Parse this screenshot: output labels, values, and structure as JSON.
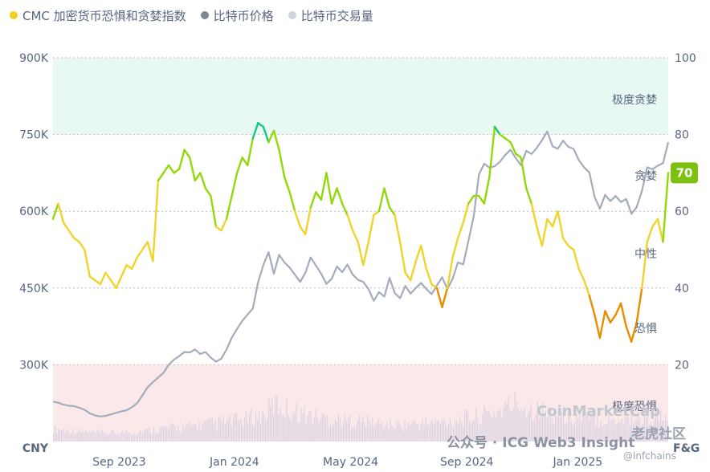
{
  "legend": [
    {
      "label": "CMC 加密货币恐惧和贪婪指数",
      "color": "#f2cf1b"
    },
    {
      "label": "比特币价格",
      "color": "#7d8595"
    },
    {
      "label": "比特币交易量",
      "color": "#cfd3dc"
    }
  ],
  "chart_data": {
    "type": "line",
    "title": "",
    "left_axis": {
      "label": "CNY",
      "ticks": [
        "900K",
        "750K",
        "600K",
        "450K",
        "300K"
      ],
      "range": [
        150000,
        900000
      ]
    },
    "right_axis": {
      "label": "F&G",
      "ticks": [
        "100",
        "80",
        "60",
        "40",
        "20"
      ],
      "range": [
        0,
        100
      ]
    },
    "x_ticks": [
      "Sep 2023",
      "Jan 2024",
      "May 2024",
      "Sep 2024",
      "Jan 2025"
    ],
    "zones": [
      {
        "label": "极度贪婪",
        "from": 80,
        "to": 100,
        "color": "#e8f8f3"
      },
      {
        "label": "贪婪",
        "from": 60,
        "to": 80
      },
      {
        "label": "中性",
        "from": 40,
        "to": 60
      },
      {
        "label": "恐惧",
        "from": 20,
        "to": 40
      },
      {
        "label": "极度恐惧",
        "from": 0,
        "to": 20,
        "color": "#fbe9ea"
      }
    ],
    "current_index": {
      "value": "70",
      "color": "#7cc10f"
    },
    "grid": true,
    "series": [
      {
        "name": "CMC 加密货币恐惧和贪婪指数",
        "axis": "right",
        "colors": {
          "extreme_greed": "#16c784",
          "greed": "#93d90a",
          "neutral": "#f0d42b",
          "fear": "#ea8c00",
          "extreme_fear": "#ea3943"
        },
        "points": [
          [
            0,
            58
          ],
          [
            1,
            62
          ],
          [
            2,
            57
          ],
          [
            3,
            55
          ],
          [
            4,
            53
          ],
          [
            5,
            52
          ],
          [
            6,
            50
          ],
          [
            7,
            43
          ],
          [
            8,
            42
          ],
          [
            9,
            41
          ],
          [
            10,
            44
          ],
          [
            11,
            42
          ],
          [
            12,
            40
          ],
          [
            13,
            43
          ],
          [
            14,
            46
          ],
          [
            15,
            45
          ],
          [
            16,
            48
          ],
          [
            17,
            50
          ],
          [
            18,
            52
          ],
          [
            19,
            47
          ],
          [
            20,
            68
          ],
          [
            21,
            70
          ],
          [
            22,
            72
          ],
          [
            23,
            70
          ],
          [
            24,
            71
          ],
          [
            25,
            76
          ],
          [
            26,
            74
          ],
          [
            27,
            68
          ],
          [
            28,
            70
          ],
          [
            29,
            66
          ],
          [
            30,
            64
          ],
          [
            31,
            56
          ],
          [
            32,
            55
          ],
          [
            33,
            58
          ],
          [
            34,
            64
          ],
          [
            35,
            70
          ],
          [
            36,
            74
          ],
          [
            37,
            72
          ],
          [
            38,
            79
          ],
          [
            39,
            83
          ],
          [
            40,
            82
          ],
          [
            41,
            78
          ],
          [
            42,
            81
          ],
          [
            43,
            76
          ],
          [
            44,
            69
          ],
          [
            45,
            65
          ],
          [
            46,
            60
          ],
          [
            47,
            56
          ],
          [
            48,
            54
          ],
          [
            49,
            61
          ],
          [
            50,
            65
          ],
          [
            51,
            63
          ],
          [
            52,
            70
          ],
          [
            53,
            62
          ],
          [
            54,
            66
          ],
          [
            55,
            62
          ],
          [
            56,
            59
          ],
          [
            57,
            55
          ],
          [
            58,
            52
          ],
          [
            59,
            46
          ],
          [
            60,
            52
          ],
          [
            61,
            59
          ],
          [
            62,
            60
          ],
          [
            63,
            66
          ],
          [
            64,
            61
          ],
          [
            65,
            59
          ],
          [
            66,
            52
          ],
          [
            67,
            44
          ],
          [
            68,
            42
          ],
          [
            69,
            47
          ],
          [
            70,
            51
          ],
          [
            71,
            45
          ],
          [
            72,
            41
          ],
          [
            73,
            40
          ],
          [
            74,
            35
          ],
          [
            75,
            40
          ],
          [
            76,
            48
          ],
          [
            77,
            53
          ],
          [
            78,
            57
          ],
          [
            79,
            62
          ],
          [
            80,
            64
          ],
          [
            81,
            64
          ],
          [
            82,
            62
          ],
          [
            83,
            69
          ],
          [
            84,
            82
          ],
          [
            85,
            80
          ],
          [
            86,
            79
          ],
          [
            87,
            78
          ],
          [
            88,
            75
          ],
          [
            89,
            74
          ],
          [
            90,
            66
          ],
          [
            91,
            62
          ],
          [
            92,
            56
          ],
          [
            93,
            51
          ],
          [
            94,
            58
          ],
          [
            95,
            56
          ],
          [
            96,
            60
          ],
          [
            97,
            53
          ],
          [
            98,
            51
          ],
          [
            99,
            50
          ],
          [
            100,
            45
          ],
          [
            101,
            42
          ],
          [
            102,
            38
          ],
          [
            103,
            33
          ],
          [
            104,
            27
          ],
          [
            105,
            34
          ],
          [
            106,
            31
          ],
          [
            107,
            33
          ],
          [
            108,
            36
          ],
          [
            109,
            30
          ],
          [
            110,
            26
          ],
          [
            111,
            31
          ],
          [
            112,
            40
          ],
          [
            113,
            52
          ],
          [
            114,
            56
          ],
          [
            115,
            58
          ],
          [
            116,
            52
          ],
          [
            117,
            70
          ]
        ]
      },
      {
        "name": "比特币价格",
        "axis": "left",
        "points": [
          [
            0,
            228000
          ],
          [
            1,
            226000
          ],
          [
            2,
            222000
          ],
          [
            3,
            220000
          ],
          [
            4,
            219000
          ],
          [
            5,
            216000
          ],
          [
            6,
            212000
          ],
          [
            7,
            205000
          ],
          [
            8,
            201000
          ],
          [
            9,
            199000
          ],
          [
            10,
            200000
          ],
          [
            11,
            203000
          ],
          [
            12,
            206000
          ],
          [
            13,
            209000
          ],
          [
            14,
            211000
          ],
          [
            15,
            217000
          ],
          [
            16,
            225000
          ],
          [
            17,
            240000
          ],
          [
            18,
            256000
          ],
          [
            19,
            266000
          ],
          [
            20,
            275000
          ],
          [
            21,
            284000
          ],
          [
            22,
            300000
          ],
          [
            23,
            310000
          ],
          [
            24,
            317000
          ],
          [
            25,
            325000
          ],
          [
            26,
            324000
          ],
          [
            27,
            330000
          ],
          [
            28,
            321000
          ],
          [
            29,
            325000
          ],
          [
            30,
            314000
          ],
          [
            31,
            306000
          ],
          [
            32,
            312000
          ],
          [
            33,
            330000
          ],
          [
            34,
            353000
          ],
          [
            35,
            370000
          ],
          [
            36,
            386000
          ],
          [
            37,
            398000
          ],
          [
            38,
            410000
          ],
          [
            39,
            461000
          ],
          [
            40,
            495000
          ],
          [
            41,
            520000
          ],
          [
            42,
            478000
          ],
          [
            43,
            515000
          ],
          [
            44,
            500000
          ],
          [
            45,
            490000
          ],
          [
            46,
            476000
          ],
          [
            47,
            462000
          ],
          [
            48,
            480000
          ],
          [
            49,
            510000
          ],
          [
            50,
            494000
          ],
          [
            51,
            478000
          ],
          [
            52,
            458000
          ],
          [
            53,
            468000
          ],
          [
            54,
            492000
          ],
          [
            55,
            481000
          ],
          [
            56,
            496000
          ],
          [
            57,
            476000
          ],
          [
            58,
            466000
          ],
          [
            59,
            462000
          ],
          [
            60,
            448000
          ],
          [
            61,
            425000
          ],
          [
            62,
            442000
          ],
          [
            63,
            433000
          ],
          [
            64,
            470000
          ],
          [
            65,
            440000
          ],
          [
            66,
            430000
          ],
          [
            67,
            454000
          ],
          [
            68,
            439000
          ],
          [
            69,
            450000
          ],
          [
            70,
            460000
          ],
          [
            71,
            448000
          ],
          [
            72,
            438000
          ],
          [
            73,
            455000
          ],
          [
            74,
            471000
          ],
          [
            75,
            448000
          ],
          [
            76,
            468000
          ],
          [
            77,
            500000
          ],
          [
            78,
            496000
          ],
          [
            79,
            542000
          ],
          [
            80,
            590000
          ],
          [
            81,
            672000
          ],
          [
            82,
            693000
          ],
          [
            83,
            685000
          ],
          [
            84,
            688000
          ],
          [
            85,
            697000
          ],
          [
            86,
            710000
          ],
          [
            87,
            720000
          ],
          [
            88,
            704000
          ],
          [
            89,
            690000
          ],
          [
            90,
            718000
          ],
          [
            91,
            712000
          ],
          [
            92,
            724000
          ],
          [
            93,
            739000
          ],
          [
            94,
            756000
          ],
          [
            95,
            727000
          ],
          [
            96,
            722000
          ],
          [
            97,
            738000
          ],
          [
            98,
            726000
          ],
          [
            99,
            722000
          ],
          [
            100,
            700000
          ],
          [
            101,
            686000
          ],
          [
            102,
            676000
          ],
          [
            103,
            628000
          ],
          [
            104,
            605000
          ],
          [
            105,
            632000
          ],
          [
            106,
            620000
          ],
          [
            107,
            630000
          ],
          [
            108,
            618000
          ],
          [
            109,
            624000
          ],
          [
            110,
            595000
          ],
          [
            111,
            608000
          ],
          [
            112,
            640000
          ],
          [
            113,
            686000
          ],
          [
            114,
            682000
          ],
          [
            115,
            689000
          ],
          [
            116,
            694000
          ],
          [
            117,
            735000
          ]
        ]
      },
      {
        "name": "比特币交易量",
        "axis": "left",
        "points": [
          [
            0,
            1.5
          ],
          [
            5,
            1.2
          ],
          [
            10,
            1.0
          ],
          [
            15,
            1.1
          ],
          [
            20,
            1.6
          ],
          [
            25,
            1.8
          ],
          [
            30,
            2.2
          ],
          [
            35,
            2.6
          ],
          [
            40,
            3.2
          ],
          [
            42,
            4.6
          ],
          [
            45,
            3.8
          ],
          [
            50,
            3.0
          ],
          [
            55,
            2.6
          ],
          [
            60,
            2.4
          ],
          [
            65,
            2.0
          ],
          [
            70,
            2.2
          ],
          [
            75,
            2.5
          ],
          [
            80,
            3.0
          ],
          [
            85,
            3.8
          ],
          [
            88,
            4.8
          ],
          [
            90,
            4.2
          ],
          [
            95,
            3.4
          ],
          [
            100,
            3.0
          ],
          [
            105,
            2.6
          ],
          [
            110,
            2.8
          ],
          [
            115,
            3.0
          ],
          [
            117,
            2.4
          ]
        ]
      }
    ]
  },
  "watermarks": {
    "coinmarketcap": "CoinMarketCap",
    "wechat": "公众号 · ICG Web3 Insight",
    "forum": "老虎社区",
    "forum_handle": "@lnfchains"
  }
}
